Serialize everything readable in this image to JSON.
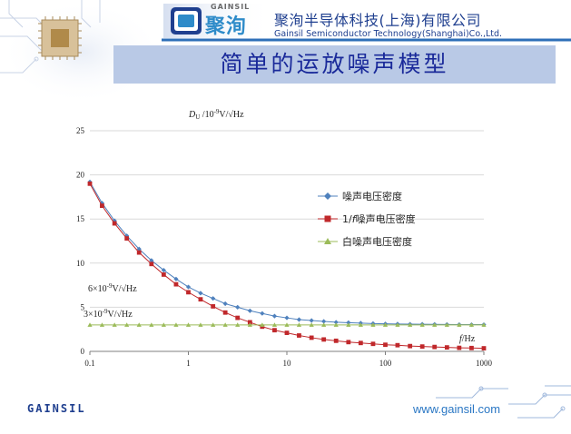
{
  "header": {
    "logo_text_en": "GAINSIL",
    "logo_text_cn": "聚洵",
    "company_cn": "聚洵半导体科技(上海)有限公司",
    "company_en": "Gainsil Semiconductor Technology(Shanghai)Co.,Ltd."
  },
  "slide_title": "简单的运放噪声模型",
  "footer": {
    "logo": "GAINSIL",
    "url": "www.gainsil.com"
  },
  "colors": {
    "total": "#4f81bd",
    "flicker": "#c0282b",
    "white": "#9bbb59",
    "title_bar": "#b9c9e6",
    "title_text": "#1a2a9a"
  },
  "chart_data": {
    "type": "line",
    "ylabel": "D_U /10⁻⁹V/√Hz",
    "ylabel_parts": {
      "main": "D",
      "sub": "U",
      "rest": " /10",
      "sup": "-9",
      "unit": "V/√Hz"
    },
    "xlabel": "f/Hz",
    "xlabel_parts": {
      "italic": "f",
      "rest": "/Hz"
    },
    "x_scale": "log",
    "xlim": [
      0.1,
      1000
    ],
    "ylim": [
      0,
      25
    ],
    "x_ticks": [
      "0.1",
      "1",
      "10",
      "100",
      "1000"
    ],
    "y_ticks": [
      "0",
      "5",
      "10",
      "15",
      "20",
      "25"
    ],
    "grid": "horizontal",
    "legend_position": "center-right",
    "series": [
      {
        "name": "噪声电压密度",
        "marker": "diamond",
        "color": "#4f81bd",
        "x": [
          0.1,
          0.133,
          0.178,
          0.237,
          0.316,
          0.422,
          0.562,
          0.75,
          1,
          1.33,
          1.78,
          2.37,
          3.16,
          4.22,
          5.62,
          7.5,
          10,
          13.3,
          17.8,
          23.7,
          31.6,
          42.2,
          56.2,
          75,
          100,
          133,
          178,
          237,
          316,
          422,
          562,
          750,
          1000
        ],
        "y": [
          19.2,
          16.8,
          14.8,
          13.1,
          11.6,
          10.3,
          9.2,
          8.2,
          7.3,
          6.6,
          6.0,
          5.4,
          5.0,
          4.6,
          4.3,
          4.0,
          3.8,
          3.6,
          3.5,
          3.4,
          3.3,
          3.25,
          3.2,
          3.15,
          3.12,
          3.1,
          3.08,
          3.07,
          3.06,
          3.05,
          3.04,
          3.03,
          3.03
        ]
      },
      {
        "name": "1/f噪声电压密度",
        "name_parts": {
          "prefix": "1/",
          "italic": "f",
          "rest": "噪声电压密度"
        },
        "marker": "square",
        "color": "#c0282b",
        "x": [
          0.1,
          0.133,
          0.178,
          0.237,
          0.316,
          0.422,
          0.562,
          0.75,
          1,
          1.33,
          1.78,
          2.37,
          3.16,
          4.22,
          5.62,
          7.5,
          10,
          13.3,
          17.8,
          23.7,
          31.6,
          42.2,
          56.2,
          75,
          100,
          133,
          178,
          237,
          316,
          422,
          562,
          750,
          1000
        ],
        "y": [
          19.0,
          16.5,
          14.5,
          12.8,
          11.2,
          9.9,
          8.7,
          7.6,
          6.7,
          5.9,
          5.1,
          4.4,
          3.8,
          3.3,
          2.8,
          2.4,
          2.1,
          1.8,
          1.55,
          1.35,
          1.2,
          1.05,
          0.95,
          0.85,
          0.75,
          0.7,
          0.6,
          0.55,
          0.5,
          0.45,
          0.4,
          0.38,
          0.35
        ]
      },
      {
        "name": "白噪声电压密度",
        "marker": "triangle",
        "color": "#9bbb59",
        "x": [
          0.1,
          0.133,
          0.178,
          0.237,
          0.316,
          0.422,
          0.562,
          0.75,
          1,
          1.33,
          1.78,
          2.37,
          3.16,
          4.22,
          5.62,
          7.5,
          10,
          13.3,
          17.8,
          23.7,
          31.6,
          42.2,
          56.2,
          75,
          100,
          133,
          178,
          237,
          316,
          422,
          562,
          750,
          1000
        ],
        "y": [
          3,
          3,
          3,
          3,
          3,
          3,
          3,
          3,
          3,
          3,
          3,
          3,
          3,
          3,
          3,
          3,
          3,
          3,
          3,
          3,
          3,
          3,
          3,
          3,
          3,
          3,
          3,
          3,
          3,
          3,
          3,
          3,
          3
        ]
      }
    ],
    "annotations": [
      {
        "text": "6×10⁻⁹V/√Hz",
        "parts": {
          "pre": "6×10",
          "sup": "-9",
          "post": "V/√Hz"
        },
        "x": 0.1,
        "y": 6
      },
      {
        "text": "3×10⁻⁹V/√Hz",
        "parts": {
          "pre": "3×10",
          "sup": "-9",
          "post": "V/√Hz"
        },
        "x": 0.1,
        "y": 3
      }
    ]
  }
}
